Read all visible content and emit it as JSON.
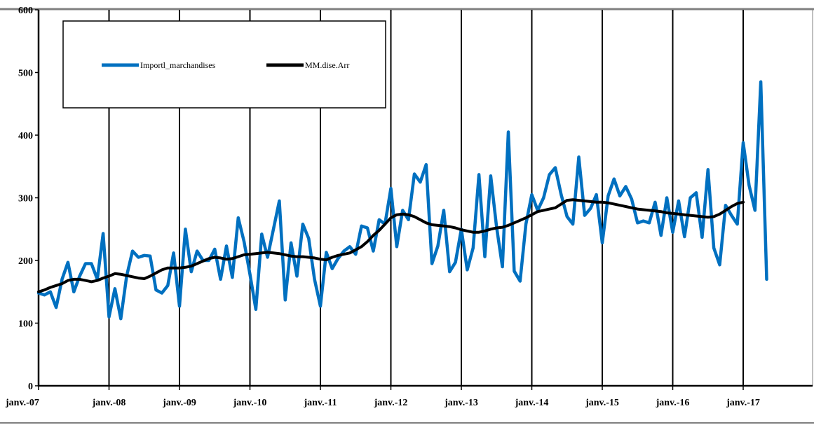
{
  "chart_data": {
    "type": "line",
    "x_tick_labels": [
      "janv.-07",
      "janv.-08",
      "janv.-09",
      "janv.-10",
      "janv.-11",
      "janv.-12",
      "janv.-13",
      "janv.-14",
      "janv.-15",
      "janv.-16",
      "janv.-17"
    ],
    "ylim": [
      0,
      600
    ],
    "y_ticks": [
      0,
      100,
      200,
      300,
      400,
      500,
      600
    ],
    "grid": "vertical",
    "legend_position": "top-left",
    "series": [
      {
        "name": "Importl_marchandises",
        "color": "#0070C0",
        "start": "2007-01",
        "values": [
          148,
          145,
          150,
          125,
          170,
          197,
          150,
          175,
          195,
          195,
          170,
          243,
          110,
          155,
          107,
          175,
          215,
          205,
          208,
          207,
          153,
          148,
          160,
          212,
          127,
          250,
          182,
          215,
          200,
          200,
          218,
          170,
          223,
          173,
          268,
          230,
          178,
          122,
          242,
          205,
          250,
          295,
          137,
          228,
          175,
          258,
          235,
          170,
          127,
          213,
          187,
          203,
          215,
          222,
          210,
          255,
          252,
          215,
          265,
          258,
          315,
          222,
          280,
          265,
          338,
          325,
          353,
          195,
          223,
          280,
          182,
          197,
          250,
          185,
          220,
          337,
          206,
          335,
          253,
          190,
          405,
          183,
          167,
          258,
          305,
          280,
          300,
          337,
          348,
          305,
          270,
          258,
          365,
          272,
          283,
          305,
          228,
          303,
          330,
          303,
          318,
          298,
          260,
          263,
          260,
          293,
          240,
          300,
          245,
          295,
          238,
          300,
          308,
          237,
          345,
          220,
          193,
          288,
          272,
          258,
          388,
          320,
          280,
          485,
          170
        ]
      },
      {
        "name": "MM.dise.Arr",
        "color": "#000000",
        "start": "2007-01",
        "values": [
          150,
          153,
          157,
          160,
          163,
          168,
          170,
          170,
          168,
          166,
          168,
          172,
          175,
          179,
          178,
          176,
          174,
          172,
          171,
          175,
          180,
          185,
          188,
          188,
          188,
          189,
          191,
          195,
          199,
          203,
          205,
          204,
          202,
          203,
          206,
          209,
          210,
          211,
          212,
          213,
          212,
          211,
          209,
          207,
          206,
          206,
          205,
          204,
          202,
          201,
          205,
          208,
          210,
          212,
          217,
          222,
          230,
          240,
          248,
          258,
          268,
          273,
          274,
          273,
          270,
          265,
          260,
          257,
          256,
          255,
          254,
          252,
          249,
          247,
          245,
          245,
          247,
          250,
          252,
          253,
          256,
          260,
          264,
          268,
          273,
          278,
          280,
          282,
          284,
          290,
          296,
          297,
          296,
          295,
          294,
          293,
          293,
          292,
          290,
          288,
          286,
          284,
          282,
          281,
          280,
          279,
          278,
          276,
          275,
          274,
          273,
          272,
          271,
          270,
          269,
          270,
          274,
          280,
          286,
          291,
          293
        ]
      }
    ]
  }
}
